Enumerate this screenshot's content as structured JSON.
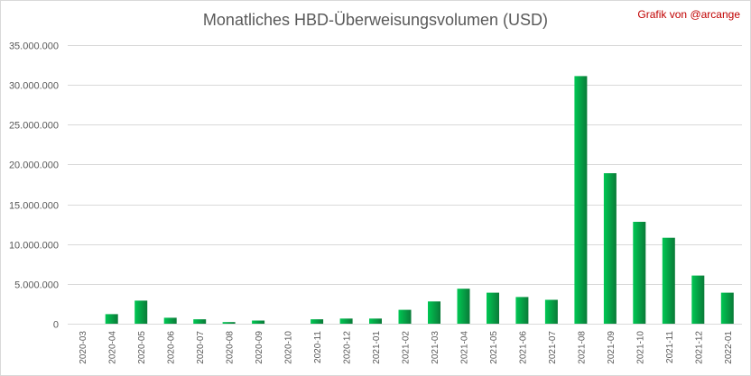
{
  "chart_data": {
    "type": "bar",
    "title": "Monatliches HBD-Überweisungsvolumen (USD)",
    "credit": "Grafik von @arcange",
    "xlabel": "",
    "ylabel": "",
    "ylim": [
      0,
      35000000
    ],
    "yticks": [
      0,
      5000000,
      10000000,
      15000000,
      20000000,
      25000000,
      30000000,
      35000000
    ],
    "ytick_labels": [
      "0",
      "5.000.000",
      "10.000.000",
      "15.000.000",
      "20.000.000",
      "25.000.000",
      "30.000.000",
      "35.000.000"
    ],
    "grid": true,
    "legend": "none",
    "bar_color_light": "#00c853",
    "bar_color_dark": "#0a7a38",
    "categories": [
      "2020-03",
      "2020-04",
      "2020-05",
      "2020-06",
      "2020-07",
      "2020-08",
      "2020-09",
      "2020-10",
      "2020-11",
      "2020-12",
      "2021-01",
      "2021-02",
      "2021-03",
      "2021-04",
      "2021-05",
      "2021-06",
      "2021-07",
      "2021-08",
      "2021-09",
      "2021-10",
      "2021-11",
      "2021-12",
      "2022-01"
    ],
    "values": [
      0,
      1200000,
      2900000,
      750000,
      550000,
      200000,
      400000,
      0,
      550000,
      650000,
      650000,
      1750000,
      2800000,
      4400000,
      3900000,
      3350000,
      3000000,
      31100000,
      18900000,
      12800000,
      10800000,
      6050000,
      3900000
    ]
  }
}
